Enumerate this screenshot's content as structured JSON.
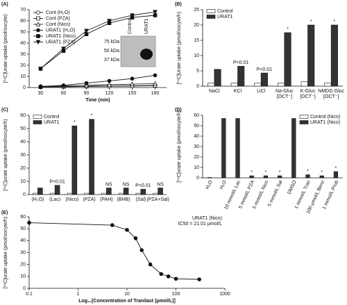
{
  "chart_data": [
    {
      "type": "line",
      "label": "(A)",
      "xlabel": "Time (min)",
      "ylabel": "[¹⁴C]Urate uptake (pmol/oocyte)",
      "x": [
        30,
        60,
        90,
        120,
        150,
        180
      ],
      "xlim": [
        15,
        195
      ],
      "xticks": [
        30,
        60,
        90,
        120,
        150,
        180
      ],
      "ylim": [
        0,
        70
      ],
      "yticks": [
        0,
        10,
        20,
        30,
        40,
        50,
        60,
        70
      ],
      "legend": "upper left",
      "series": [
        {
          "name": "Cont (H₂O)",
          "color": "#111111",
          "marker": "circle",
          "filled": false,
          "values": [
            0.5,
            0.7,
            1,
            1.2,
            1.4,
            1.6
          ]
        },
        {
          "name": "Cont (PZA)",
          "color": "#111111",
          "marker": "square",
          "filled": false,
          "values": [
            0.5,
            0.8,
            1,
            1.3,
            1.5,
            1.8
          ]
        },
        {
          "name": "Cont (Nico)",
          "color": "#111111",
          "marker": "triangle",
          "filled": false,
          "values": [
            1,
            1.5,
            2,
            2.5,
            3,
            3.5
          ]
        },
        {
          "name": "URAT1 (H₂O)",
          "color": "#111111",
          "marker": "circle",
          "filled": true,
          "values": [
            1,
            2,
            4,
            6,
            8,
            11
          ]
        },
        {
          "name": "URAT1 (Nico)",
          "color": "#111111",
          "marker": "square",
          "filled": true,
          "values": [
            17,
            33,
            48,
            58,
            63,
            65
          ]
        },
        {
          "name": "URAT1 (PZA)",
          "color": "#111111",
          "marker": "triangle-down",
          "filled": true,
          "values": [
            17,
            35,
            51,
            60,
            65,
            68
          ]
        }
      ],
      "inset": {
        "lanes": [
          "Control",
          "URAT1"
        ],
        "sizes": [
          "75 kDa",
          "50 kDa",
          "37 kDa"
        ]
      }
    },
    {
      "type": "bar",
      "label": "(B)",
      "ylabel": "[¹⁴C]Urate uptake (pmol/oocyte/h)",
      "categories": [
        [
          "NaCl"
        ],
        [
          "KCl"
        ],
        [
          "LiCl"
        ],
        [
          "Na-Gluc",
          "[OCT⁻]"
        ],
        [
          "K-Gluc",
          "[OCT⁻]"
        ],
        [
          "NMDG Gluc",
          "[OCT⁻]"
        ]
      ],
      "ylim": [
        0,
        25
      ],
      "yticks": [
        0,
        5,
        10,
        15,
        20,
        25
      ],
      "legend": "upper left",
      "series": [
        {
          "name": "Control",
          "color": "#ffffff",
          "values": [
            1,
            1,
            1,
            1,
            1.5,
            1
          ]
        },
        {
          "name": "URAT1",
          "color": "#333333",
          "values": [
            5.5,
            6.5,
            4.3,
            17.5,
            20,
            20
          ]
        }
      ],
      "annotations": [
        null,
        "P<0.01",
        "P<0.01",
        "*",
        "*",
        "*"
      ]
    },
    {
      "type": "bar",
      "label": "(C)",
      "ylabel": "[¹⁴C]urate uptake (pmol/oocyte/h)",
      "categories": [
        [
          "(H₂O)"
        ],
        [
          "(Lac)"
        ],
        [
          "(Nico)"
        ],
        [
          "(PZA)"
        ],
        [
          "(PAH)"
        ],
        [
          "(BHB)"
        ],
        [
          "(Sal)"
        ],
        [
          "(PZA+Sal)"
        ]
      ],
      "ylim": [
        0,
        60
      ],
      "yticks": [
        0,
        10,
        20,
        30,
        40,
        50,
        60
      ],
      "legend": "upper left",
      "series": [
        {
          "name": "Control",
          "color": "#ffffff",
          "values": [
            1,
            1,
            1,
            1,
            1,
            1,
            1,
            1
          ]
        },
        {
          "name": "URAT1",
          "color": "#333333",
          "values": [
            5,
            7,
            52,
            57,
            5,
            5,
            4,
            5
          ]
        }
      ],
      "annotations": [
        null,
        "P<0.01",
        "*",
        "*",
        "NS",
        "NS",
        "P<0.01",
        "NS"
      ]
    },
    {
      "type": "bar",
      "label": "(D)",
      "ylabel": "[¹⁴C]urate uptake (pmol/oocyte/h)",
      "xtick_rotation": -65,
      "categories": [
        [
          "H₂O"
        ],
        [
          "H₂O"
        ],
        [
          "10 mmol/L Lac"
        ],
        [
          "5 mmol/L PZA"
        ],
        [
          "5 mmol/L Nico"
        ],
        [
          "5 mmol/L Sal"
        ],
        [
          "DMSO"
        ],
        [
          "1 mmol/L Tran"
        ],
        [
          "100 µmol/L Benz"
        ],
        [
          "1 mmol/L Prob"
        ]
      ],
      "ylim": [
        0,
        60
      ],
      "yticks": [
        0,
        10,
        20,
        30,
        40,
        50,
        60
      ],
      "legend": "upper right",
      "series": [
        {
          "name": "Control (Nico)",
          "color": "#ffffff",
          "values": [
            0.5,
            null,
            null,
            null,
            null,
            null,
            null,
            null,
            null,
            null
          ]
        },
        {
          "name": "URAT1 (Nico)",
          "color": "#333333",
          "values": [
            null,
            57,
            57,
            2,
            2,
            2,
            57,
            3,
            2,
            6
          ]
        }
      ],
      "annotations": [
        null,
        null,
        null,
        "*",
        "*",
        "*",
        null,
        "*",
        "*",
        "*"
      ]
    },
    {
      "type": "line",
      "label": "(E)",
      "xscale": "log",
      "xlabel": "Log₁₀[Concentration of Tranilast (µmol/L)]",
      "ylabel": "[¹⁴C]urate uptake (pmol/oocyte/h)",
      "xlim": [
        0.1,
        1000
      ],
      "xticks": [
        0.1,
        1,
        10,
        100,
        1000
      ],
      "ylim": [
        0,
        60
      ],
      "yticks": [
        0,
        10,
        20,
        30,
        40,
        50,
        60
      ],
      "series": [
        {
          "name": "URAT1 (Nico)",
          "color": "#111111",
          "marker": "circle",
          "filled": true,
          "x": [
            0.1,
            5,
            10,
            15,
            20,
            30,
            50,
            70,
            100,
            300
          ],
          "values": [
            55,
            53,
            49,
            42,
            32,
            20,
            12,
            10,
            8,
            7.5
          ]
        }
      ],
      "annotations": [
        "IC50 = 21.01 µmol/L"
      ]
    }
  ]
}
